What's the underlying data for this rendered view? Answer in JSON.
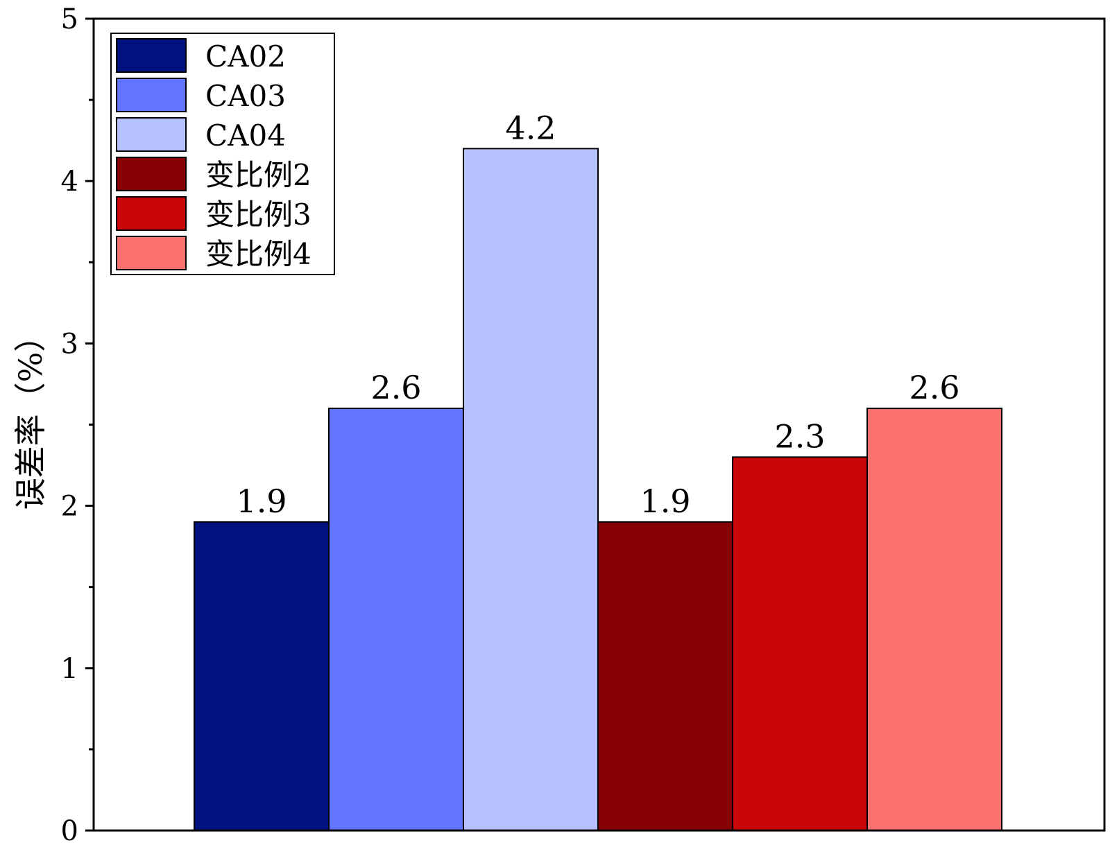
{
  "chart_data": {
    "type": "bar",
    "title": "",
    "xlabel": "",
    "ylabel": "误差率（%）",
    "ylim": [
      0,
      5
    ],
    "yticks": [
      0,
      1,
      2,
      3,
      4,
      5
    ],
    "grid": false,
    "legend_position": "top-left",
    "series": [
      {
        "name": "CA02",
        "value": 1.9,
        "label": "1.9",
        "color": "#00127F"
      },
      {
        "name": "CA03",
        "value": 2.6,
        "label": "2.6",
        "color": "#6175FF"
      },
      {
        "name": "CA04",
        "value": 4.2,
        "label": "4.2",
        "color": "#B8C1FF"
      },
      {
        "name": "变比例2",
        "value": 1.9,
        "label": "1.9",
        "color": "#880004"
      },
      {
        "name": "变比例3",
        "value": 2.3,
        "label": "2.3",
        "color": "#C90709"
      },
      {
        "name": "变比例4",
        "value": 2.6,
        "label": "2.6",
        "color": "#FB7170"
      }
    ]
  }
}
